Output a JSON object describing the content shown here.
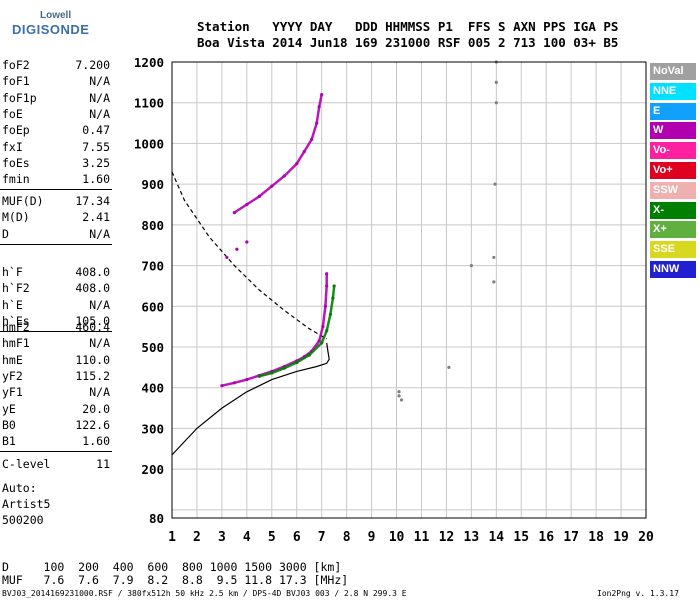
{
  "logo": {
    "top_text": "Lowell",
    "main_text": "DIGISONDE"
  },
  "header": {
    "row1": "Station   YYYY DAY   DDD HHMMSS P1  FFS S AXN PPS IGA PS",
    "row2": "Boa Vista 2014 Jun18 169 231000 RSF 005 2 713 100 03+ B5"
  },
  "params_group1": [
    {
      "name": "foF2",
      "value": "7.200"
    },
    {
      "name": "foF1",
      "value": "N/A"
    },
    {
      "name": "foF1p",
      "value": "N/A"
    },
    {
      "name": "foE",
      "value": "N/A"
    },
    {
      "name": "foEp",
      "value": "0.47"
    },
    {
      "name": "fxI",
      "value": "7.55"
    },
    {
      "name": "foEs",
      "value": "3.25"
    },
    {
      "name": "fmin",
      "value": "1.60"
    }
  ],
  "params_group2": [
    {
      "name": "MUF(D)",
      "value": "17.34"
    },
    {
      "name": "M(D)",
      "value": "2.41"
    },
    {
      "name": "D",
      "value": "N/A"
    }
  ],
  "params_group3": [
    {
      "name": "h`F",
      "value": "408.0"
    },
    {
      "name": "h`F2",
      "value": "408.0"
    },
    {
      "name": "h`E",
      "value": "N/A"
    },
    {
      "name": "h`Es",
      "value": "105.0"
    }
  ],
  "params_group4": [
    {
      "name": "hmF2",
      "value": "460.4"
    },
    {
      "name": "hmF1",
      "value": "N/A"
    },
    {
      "name": "hmE",
      "value": "110.0"
    },
    {
      "name": "yF2",
      "value": "115.2"
    },
    {
      "name": "yF1",
      "value": "N/A"
    },
    {
      "name": "yE",
      "value": "20.0"
    },
    {
      "name": "B0",
      "value": "122.6"
    },
    {
      "name": "B1",
      "value": "1.60"
    }
  ],
  "params_group5": [
    {
      "name": "C-level",
      "value": "11"
    }
  ],
  "autoscaling": {
    "line1": "Auto:",
    "line2": "Artist5",
    "line3": "500200"
  },
  "distance_table": {
    "row1": "D     100  200  400  600  800 1000 1500 3000 [km]",
    "row2": "MUF   7.6  7.6  7.9  8.2  8.8  9.5 11.8 17.3 [MHz]"
  },
  "footer": {
    "left": "BVJ03_2014169231000.RSF / 380fx512h 50 kHz 2.5 km / DPS-4D BVJ03 003 / 2.8 N 299.3 E",
    "right": "Ion2Png v. 1.3.17"
  },
  "legend": [
    {
      "label": "NoVal",
      "color": "#a0a0a0"
    },
    {
      "label": "NNE",
      "color": "#00e0ff"
    },
    {
      "label": "E",
      "color": "#10a0ff"
    },
    {
      "label": "W",
      "color": "#b000b0"
    },
    {
      "label": "Vo-",
      "color": "#ff20a0"
    },
    {
      "label": "Vo+",
      "color": "#e00020"
    },
    {
      "label": "SSW",
      "color": "#f0b0b0"
    },
    {
      "label": "X-",
      "color": "#008000"
    },
    {
      "label": "X+",
      "color": "#60b040"
    },
    {
      "label": "SSE",
      "color": "#d8d820"
    },
    {
      "label": "NNW",
      "color": "#2020d0"
    }
  ],
  "chart_data": {
    "type": "scatter",
    "xlabel": "",
    "ylabel": "",
    "xlim": [
      1,
      20
    ],
    "ylim": [
      80,
      1200
    ],
    "x_ticks": [
      1,
      2,
      3,
      4,
      5,
      6,
      7,
      8,
      9,
      10,
      11,
      12,
      13,
      14,
      15,
      16,
      17,
      18,
      19,
      20
    ],
    "y_ticks": [
      80,
      100,
      200,
      300,
      400,
      500,
      600,
      700,
      800,
      900,
      1000,
      1100,
      1200
    ],
    "y_tick_labels": [
      "80",
      "",
      "200",
      "300",
      "400",
      "500",
      "600",
      "700",
      "800",
      "900",
      "1000",
      "1100",
      "1200"
    ],
    "grid": true,
    "series": [
      {
        "color": "#b000b0",
        "points": [
          [
            3.0,
            405
          ],
          [
            3.5,
            412
          ],
          [
            4.0,
            420
          ],
          [
            4.5,
            430
          ],
          [
            5.0,
            440
          ],
          [
            5.5,
            452
          ],
          [
            6.0,
            466
          ],
          [
            6.3,
            476
          ],
          [
            6.6,
            490
          ],
          [
            6.9,
            515
          ],
          [
            7.05,
            550
          ],
          [
            7.15,
            600
          ],
          [
            7.2,
            650
          ],
          [
            7.2,
            680
          ]
        ]
      },
      {
        "color": "#008000",
        "points": [
          [
            4.5,
            428
          ],
          [
            5.0,
            436
          ],
          [
            5.5,
            448
          ],
          [
            6.0,
            462
          ],
          [
            6.5,
            480
          ],
          [
            7.0,
            510
          ],
          [
            7.2,
            540
          ],
          [
            7.35,
            580
          ],
          [
            7.45,
            620
          ],
          [
            7.5,
            650
          ]
        ]
      },
      {
        "color": "#b000b0",
        "points": [
          [
            3.5,
            830
          ],
          [
            4.0,
            850
          ],
          [
            4.5,
            870
          ],
          [
            5.0,
            895
          ],
          [
            5.5,
            920
          ],
          [
            6.0,
            950
          ],
          [
            6.3,
            980
          ],
          [
            6.6,
            1010
          ],
          [
            6.8,
            1050
          ],
          [
            6.9,
            1090
          ],
          [
            7.0,
            1120
          ]
        ]
      },
      {
        "color": "#b000b0",
        "points": [
          [
            3.2,
            720
          ],
          [
            3.6,
            740
          ],
          [
            4.0,
            758
          ]
        ]
      },
      {
        "color": "#808080",
        "points": [
          [
            10.1,
            390
          ],
          [
            10.1,
            380
          ],
          [
            10.2,
            370
          ],
          [
            13.9,
            660
          ],
          [
            13.9,
            720
          ],
          [
            13.95,
            900
          ],
          [
            14.0,
            1100
          ],
          [
            14.0,
            1150
          ],
          [
            14.0,
            1200
          ],
          [
            12.1,
            450
          ],
          [
            13.0,
            700
          ]
        ]
      }
    ],
    "profile_solid": [
      [
        1.0,
        235
      ],
      [
        2.0,
        300
      ],
      [
        3.0,
        350
      ],
      [
        4.0,
        390
      ],
      [
        5.0,
        420
      ],
      [
        6.0,
        440
      ],
      [
        6.8,
        452
      ],
      [
        7.2,
        460
      ],
      [
        7.3,
        470
      ],
      [
        7.25,
        490
      ],
      [
        7.2,
        510
      ]
    ],
    "profile_dashed": [
      [
        1.0,
        930
      ],
      [
        1.5,
        860
      ],
      [
        2.5,
        770
      ],
      [
        3.5,
        700
      ],
      [
        4.5,
        640
      ],
      [
        5.5,
        590
      ],
      [
        6.5,
        545
      ],
      [
        7.2,
        520
      ]
    ]
  }
}
